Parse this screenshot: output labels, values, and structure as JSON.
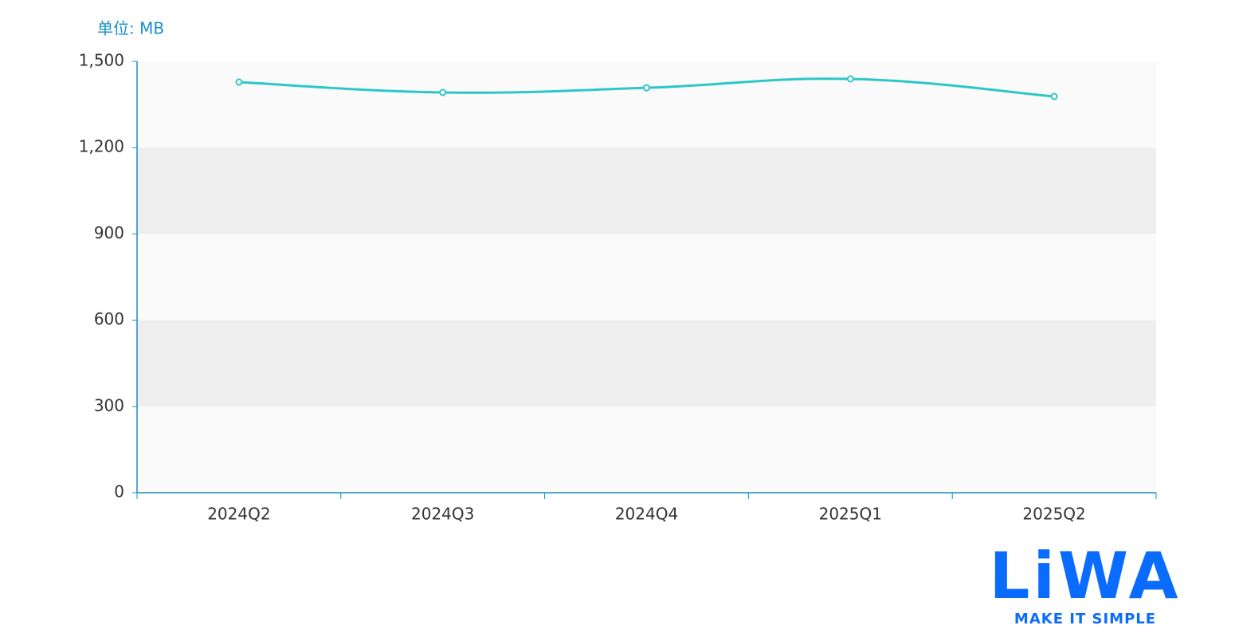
{
  "chart_data": {
    "type": "line",
    "y_axis_label": "单位: MB",
    "categories": [
      "2024Q2",
      "2024Q3",
      "2024Q4",
      "2025Q1",
      "2025Q2"
    ],
    "series": [
      {
        "name": "MB",
        "color": "#2ec7c9",
        "values": [
          1428,
          1392,
          1408,
          1439,
          1378
        ]
      }
    ],
    "ylim": [
      0,
      1500
    ],
    "yticks": [
      0,
      300,
      600,
      900,
      {
        "value": 1200,
        "label": "1,200"
      },
      {
        "value": 1500,
        "label": "1,500"
      }
    ],
    "band_colors": [
      "#fafafa",
      "#eeeeee"
    ],
    "axis_color": "#1a8bbd",
    "smooth": true
  },
  "logo": {
    "text": "LiWA",
    "tagline": "MAKE IT SIMPLE"
  }
}
